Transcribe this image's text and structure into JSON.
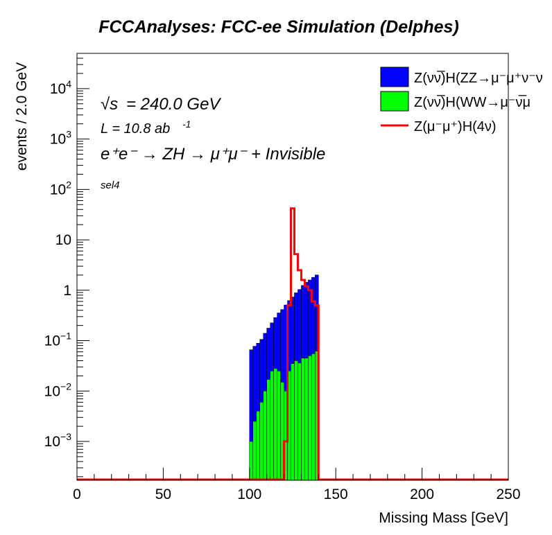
{
  "chart_data": {
    "type": "histogram",
    "title": "FCCAnalyses: FCC-ee Simulation (Delphes)",
    "xlabel": "Missing Mass [GeV]",
    "ylabel": "events / 2.0 GeV",
    "xlim": [
      0,
      250
    ],
    "ylim": [
      0.00017,
      50000
    ],
    "log_y": true,
    "x_ticks": [
      "0",
      "50",
      "100",
      "150",
      "200",
      "250"
    ],
    "y_tick_labels": [
      {
        "v": 0.001,
        "base": "10",
        "exp": "−3"
      },
      {
        "v": 0.01,
        "base": "10",
        "exp": "−2"
      },
      {
        "v": 0.1,
        "base": "10",
        "exp": "−1"
      },
      {
        "v": 1,
        "base": "1",
        "exp": ""
      },
      {
        "v": 10,
        "base": "10",
        "exp": ""
      },
      {
        "v": 100,
        "base": "10",
        "exp": "2"
      },
      {
        "v": 1000,
        "base": "10",
        "exp": "3"
      },
      {
        "v": 10000,
        "base": "10",
        "exp": "4"
      }
    ],
    "bin_width": 2.0,
    "annotations": {
      "sqrt_s": "= 240.0 GeV",
      "sqrt_symbol": "√s",
      "lumi": "L = 10.8 ab",
      "lumi_exp": "-1",
      "process": "e⁺e⁻ → ZH → μ⁺μ⁻ + Invisible",
      "selection": "sel4"
    },
    "legend_position": "top-right",
    "series": [
      {
        "name": "Z(νν̅)H(ZZ→μ⁻μ⁺ν⁻ν",
        "style": "stacked-fill",
        "color": "#0000ff",
        "bin_edges_start": 100,
        "values": [
          0.065,
          0.075,
          0.085,
          0.1,
          0.13,
          0.16,
          0.2,
          0.26,
          0.33,
          0.4,
          0.5,
          0.6,
          0.7,
          0.85,
          1.0,
          1.2,
          1.4,
          1.55,
          1.75,
          1.95
        ]
      },
      {
        "name": "Z(νν̅)H(WW→μ⁻ν̅μ",
        "style": "stacked-fill",
        "color": "#00ff00",
        "bin_edges_start": 100,
        "values": [
          0.001,
          0.0025,
          0.004,
          0.006,
          0.01,
          0.017,
          0.025,
          0.028,
          0.025,
          0.015,
          0.01,
          0.025,
          0.035,
          0.04,
          0.036,
          0.045,
          0.045,
          0.05,
          0.055,
          0.062
        ]
      },
      {
        "name": "Z(μ⁻μ⁺)H(4ν)",
        "style": "line",
        "color": "#ff0000",
        "bin_edges_start": 100,
        "values": [
          0.00017,
          0.00017,
          0.00017,
          0.00017,
          0.00017,
          0.00017,
          0.00017,
          0.00017,
          0.00017,
          0.00017,
          0.001,
          0.5,
          42,
          5.2,
          2.5,
          1.6,
          1.2,
          1.0,
          0.6,
          0.5
        ]
      }
    ]
  }
}
